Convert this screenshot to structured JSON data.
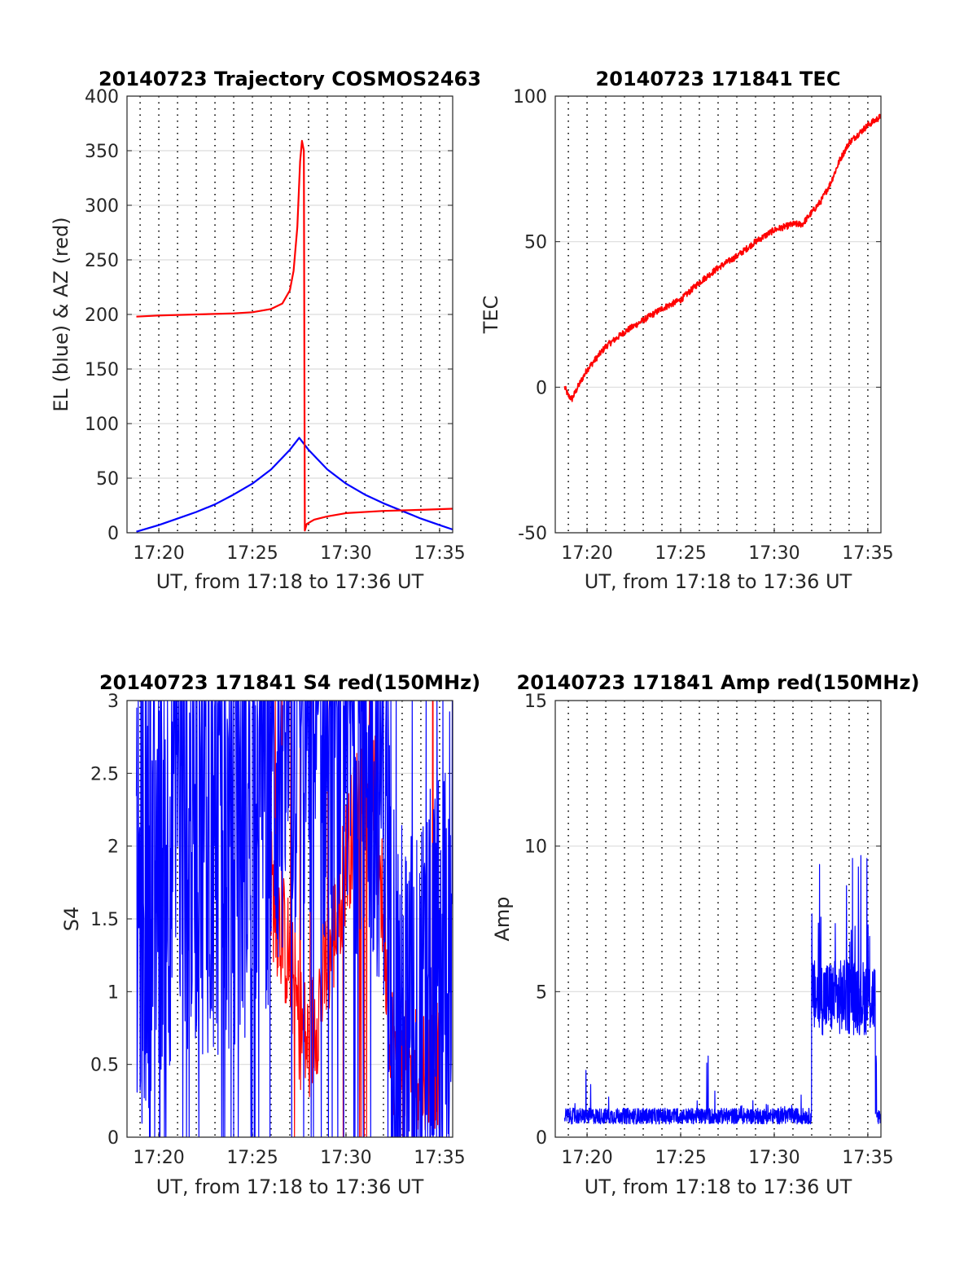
{
  "charts": [
    {
      "title": "20140723 Trajectory COSMOS2463",
      "xlabel": "UT, from 17:18 to 17:36 UT",
      "ylabel": "EL (blue) & AZ (red)",
      "xtick_labels": [
        "17:20",
        "17:25",
        "17:30",
        "17:35"
      ],
      "ytick_labels": [
        "0",
        "50",
        "100",
        "150",
        "200",
        "250",
        "300",
        "350",
        "400"
      ]
    },
    {
      "title": "20140723 171841 TEC",
      "xlabel": "UT, from 17:18 to 17:36 UT",
      "ylabel": "TEC",
      "xtick_labels": [
        "17:20",
        "17:25",
        "17:30",
        "17:35"
      ],
      "ytick_labels": [
        "-50",
        "0",
        "50",
        "100"
      ]
    },
    {
      "title": "20140723 171841 S4 red(150MHz)",
      "xlabel": "UT, from 17:18 to 17:36 UT",
      "ylabel": "S4",
      "xtick_labels": [
        "17:20",
        "17:25",
        "17:30",
        "17:35"
      ],
      "ytick_labels": [
        "0",
        "0.5",
        "1",
        "1.5",
        "2",
        "2.5",
        "3"
      ]
    },
    {
      "title": "20140723 171841 Amp red(150MHz)",
      "xlabel": "UT, from 17:18 to 17:36 UT",
      "ylabel": "Amp",
      "xtick_labels": [
        "17:20",
        "17:25",
        "17:30",
        "17:35"
      ],
      "ytick_labels": [
        "0",
        "5",
        "10",
        "15"
      ]
    }
  ],
  "chart_data": [
    {
      "type": "line",
      "title": "20140723 Trajectory COSMOS2463",
      "xlabel": "UT, from 17:18 to 17:36 UT",
      "ylabel": "EL (blue) & AZ (red)",
      "x_unit": "minutes after 17:00 UT",
      "xlim": [
        18.3,
        35.7
      ],
      "ylim": [
        0,
        400
      ],
      "grid": "vertical dotted every 1 min, horizontal solid at y ticks",
      "series": [
        {
          "color": "#0000ff",
          "x": [
            18.8,
            20,
            21,
            22,
            23,
            24,
            25,
            26,
            27,
            27.5,
            28,
            29,
            30,
            31,
            32,
            33,
            34,
            35,
            35.7
          ],
          "values": [
            1,
            7,
            13,
            19,
            26,
            35,
            45,
            58,
            76,
            87,
            76,
            58,
            45,
            35,
            27,
            20,
            13,
            7,
            3
          ]
        },
        {
          "color": "#ff0000",
          "x": [
            18.8,
            20,
            22,
            24,
            25,
            26,
            26.6,
            27,
            27.2,
            27.4,
            27.55,
            27.65,
            27.75,
            27.8,
            27.9,
            28.3,
            29,
            30,
            32,
            34,
            35.7
          ],
          "values": [
            198,
            199,
            200,
            201,
            202,
            205,
            210,
            222,
            240,
            280,
            340,
            359,
            350,
            2,
            8,
            12,
            15,
            18,
            20,
            21,
            22
          ]
        }
      ]
    },
    {
      "type": "line",
      "title": "20140723 171841 TEC",
      "xlabel": "UT, from 17:18 to 17:36 UT",
      "ylabel": "TEC",
      "x_unit": "minutes after 17:00 UT",
      "xlim": [
        18.3,
        35.7
      ],
      "ylim": [
        -50,
        100
      ],
      "series": [
        {
          "color": "#ff0000",
          "x": [
            18.8,
            19.0,
            19.2,
            19.5,
            20,
            21,
            22,
            23,
            24,
            25,
            26,
            27,
            28,
            29,
            30,
            31,
            31.5,
            32,
            32.5,
            33,
            33.5,
            34,
            34.5,
            35,
            35.7
          ],
          "values": [
            0,
            -3,
            -4,
            0,
            6,
            14,
            19,
            23,
            27,
            30,
            36,
            41,
            45,
            50,
            54,
            56,
            56,
            60,
            64,
            70,
            78,
            84,
            87,
            90,
            93
          ]
        }
      ]
    },
    {
      "type": "line",
      "title": "20140723 171841 S4 red(150MHz)",
      "xlabel": "UT, from 17:18 to 17:36 UT",
      "ylabel": "S4",
      "x_unit": "minutes after 17:00 UT",
      "xlim": [
        18.3,
        35.7
      ],
      "ylim": [
        0,
        3
      ],
      "note": "dense noisy traces; red baseline and blue envelope approximated",
      "series": [
        {
          "color": "#ff0000",
          "x": [
            26,
            27,
            27.5,
            28,
            28.5,
            29,
            29.5,
            30,
            30.5,
            31,
            31.5,
            32,
            32.5,
            33,
            34,
            35
          ],
          "values": [
            1.7,
            1.2,
            0.8,
            0.6,
            0.9,
            1.2,
            1.5,
            1.9,
            2.2,
            2.6,
            2.4,
            1.5,
            0.6,
            0.5,
            0.5,
            0.5
          ]
        },
        {
          "color": "#0000ff",
          "x": [
            18.8,
            20,
            22,
            24,
            25,
            26,
            27,
            28,
            29,
            30,
            31,
            32,
            32.5,
            33,
            34,
            35,
            35.7
          ],
          "values": [
            1.5,
            2.0,
            2.2,
            2.0,
            2.4,
            2.5,
            2.8,
            2.9,
            2.8,
            2.9,
            2.8,
            2.6,
            1.0,
            0.6,
            0.6,
            1.0,
            1.8
          ]
        }
      ]
    },
    {
      "type": "line",
      "title": "20140723 171841 Amp red(150MHz)",
      "xlabel": "UT, from 17:18 to 17:36 UT",
      "ylabel": "Amp",
      "x_unit": "minutes after 17:00 UT",
      "xlim": [
        18.3,
        35.7
      ],
      "ylim": [
        0,
        15
      ],
      "series": [
        {
          "color": "#0000ff",
          "x": [
            18.8,
            19,
            19.5,
            20,
            20.5,
            21,
            22,
            23,
            24,
            25,
            25.5,
            26,
            26.5,
            27,
            28,
            29,
            30,
            31,
            31.5,
            32,
            32.2,
            32.5,
            33,
            33.3,
            33.5,
            34,
            34.5,
            35,
            35.3,
            35.5,
            35.7
          ],
          "values": [
            0.6,
            2.0,
            0.8,
            2.5,
            0.7,
            1.5,
            0.7,
            0.8,
            0.9,
            1.0,
            1.4,
            1.2,
            2.9,
            0.9,
            1.0,
            1.3,
            1.0,
            1.1,
            1.5,
            2.5,
            8.0,
            6.5,
            9.9,
            6.0,
            9.8,
            7.0,
            6.2,
            6.0,
            6.1,
            1.5,
            0.8
          ]
        }
      ]
    }
  ]
}
